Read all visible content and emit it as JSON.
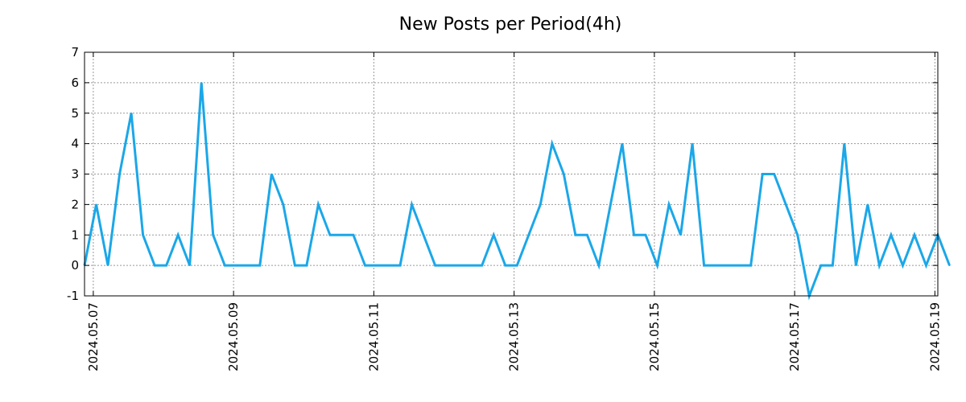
{
  "chart_data": {
    "type": "line",
    "title": "New Posts per Period(4h)",
    "xlabel": "",
    "ylabel": "",
    "ylim": [
      -1,
      7
    ],
    "yticks": [
      -1,
      0,
      1,
      2,
      3,
      4,
      5,
      6,
      7
    ],
    "xlim_periods": [
      0,
      73
    ],
    "xticks": [
      {
        "label": "2024.05.07",
        "period": 0.75
      },
      {
        "label": "2024.05.09",
        "period": 12.75
      },
      {
        "label": "2024.05.11",
        "period": 24.75
      },
      {
        "label": "2024.05.13",
        "period": 36.75
      },
      {
        "label": "2024.05.15",
        "period": 48.75
      },
      {
        "label": "2024.05.17",
        "period": 60.75
      },
      {
        "label": "2024.05.19",
        "period": 72.75
      }
    ],
    "grid": true,
    "series": [
      {
        "name": "New Posts",
        "color": "#1ba7e8",
        "values": [
          0,
          2,
          0,
          3,
          5,
          1,
          0,
          0,
          1,
          0,
          6,
          1,
          0,
          0,
          0,
          0,
          3,
          2,
          0,
          0,
          2,
          1,
          1,
          1,
          0,
          0,
          0,
          0,
          2,
          1,
          0,
          0,
          0,
          0,
          0,
          1,
          0,
          0,
          1,
          2,
          4,
          3,
          1,
          1,
          0,
          2,
          4,
          1,
          1,
          0,
          2,
          1,
          4,
          0,
          0,
          0,
          0,
          0,
          3,
          3,
          2,
          1,
          -1,
          0,
          0,
          4,
          0,
          2,
          0,
          1,
          0,
          1,
          0,
          1,
          0
        ]
      }
    ]
  }
}
